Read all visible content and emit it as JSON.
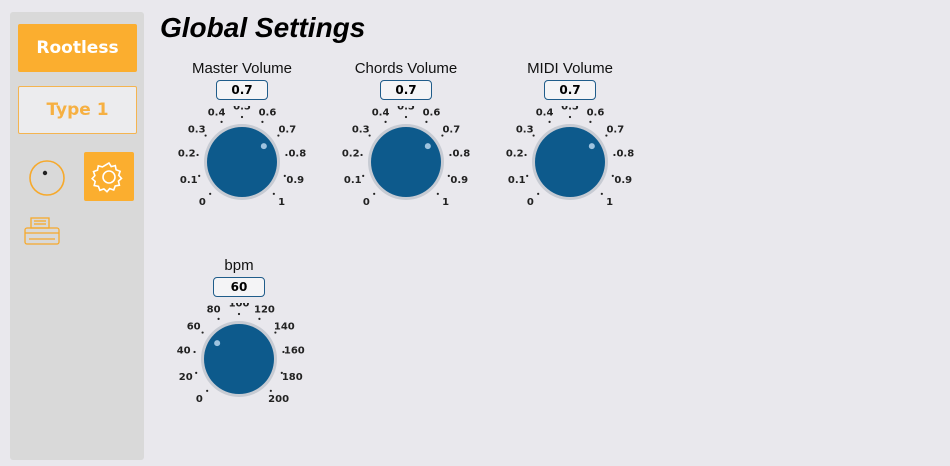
{
  "sidebar": {
    "rootless_label": "Rootless",
    "type_label": "Type 1",
    "accent": "#fbae2f",
    "icons": [
      "knob-icon",
      "gear-icon",
      "printer-icon"
    ]
  },
  "page": {
    "title": "Global Settings"
  },
  "knobs": [
    {
      "label": "Master Volume",
      "value": "0.7",
      "min": 0,
      "max": 1,
      "ticks": [
        "0",
        "0.1",
        "0.2",
        "0.3",
        "0.4",
        "0.5",
        "0.6",
        "0.7",
        "0.8",
        "0.9",
        "1"
      ]
    },
    {
      "label": "Chords Volume",
      "value": "0.7",
      "min": 0,
      "max": 1,
      "ticks": [
        "0",
        "0.1",
        "0.2",
        "0.3",
        "0.4",
        "0.5",
        "0.6",
        "0.7",
        "0.8",
        "0.9",
        "1"
      ]
    },
    {
      "label": "MIDI Volume",
      "value": "0.7",
      "min": 0,
      "max": 1,
      "ticks": [
        "0",
        "0.1",
        "0.2",
        "0.3",
        "0.4",
        "0.5",
        "0.6",
        "0.7",
        "0.8",
        "0.9",
        "1"
      ]
    },
    {
      "label": "bpm",
      "value": "60",
      "min": 0,
      "max": 200,
      "ticks": [
        "0",
        "20",
        "40",
        "60",
        "80",
        "100",
        "120",
        "140",
        "160",
        "180",
        "200"
      ]
    }
  ],
  "colors": {
    "knob": "#0d5a8c",
    "ring": "#c7cbd3",
    "indicator": "#9ec3df"
  }
}
